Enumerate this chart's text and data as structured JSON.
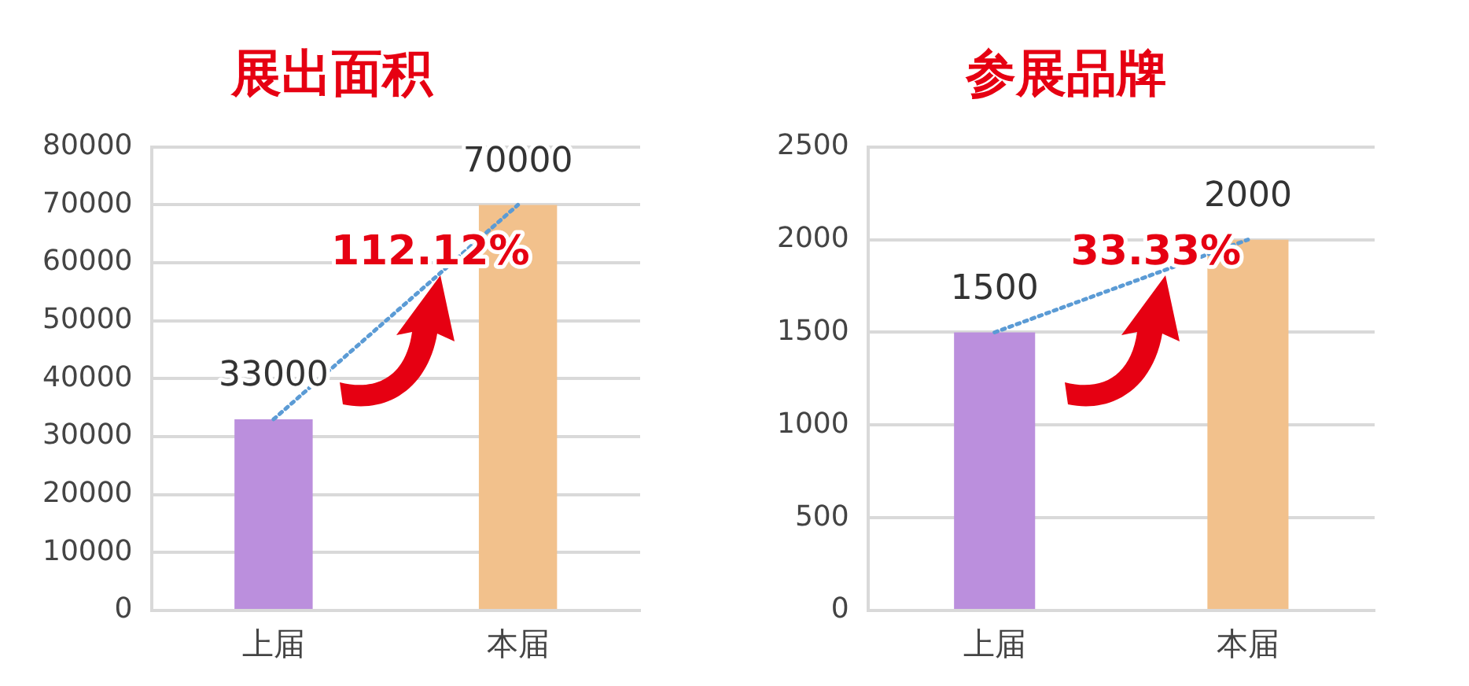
{
  "chart_data": [
    {
      "type": "bar",
      "title": "展出面积",
      "categories": [
        "上届",
        "本届"
      ],
      "series": [
        {
          "colors": [
            "#bb8fdd",
            "#f2c18c"
          ],
          "values": [
            33000,
            70000
          ],
          "value_labels": [
            "33000",
            "70000"
          ]
        },
        {
          "type": "line",
          "color": "#5b9bd5",
          "values": [
            33000,
            70000
          ],
          "line_style": "dotted",
          "marker": "none"
        }
      ],
      "ylim": [
        0,
        80000
      ],
      "yticks": [
        0,
        10000,
        20000,
        30000,
        40000,
        50000,
        60000,
        70000,
        80000
      ],
      "grid": "y",
      "annotations": [
        "112.12%"
      ]
    },
    {
      "type": "bar",
      "title": "参展品牌",
      "categories": [
        "上届",
        "本届"
      ],
      "series": [
        {
          "colors": [
            "#bb8fdd",
            "#f2c18c"
          ],
          "values": [
            1500,
            2000
          ],
          "value_labels": [
            "1500",
            "2000"
          ]
        },
        {
          "type": "line",
          "color": "#5b9bd5",
          "values": [
            1500,
            2000
          ],
          "line_style": "dotted",
          "marker": "none"
        }
      ],
      "ylim": [
        0,
        2500
      ],
      "yticks": [
        0,
        500,
        1000,
        1500,
        2000,
        2500
      ],
      "grid": "y",
      "annotations": [
        "33.33%"
      ]
    }
  ]
}
